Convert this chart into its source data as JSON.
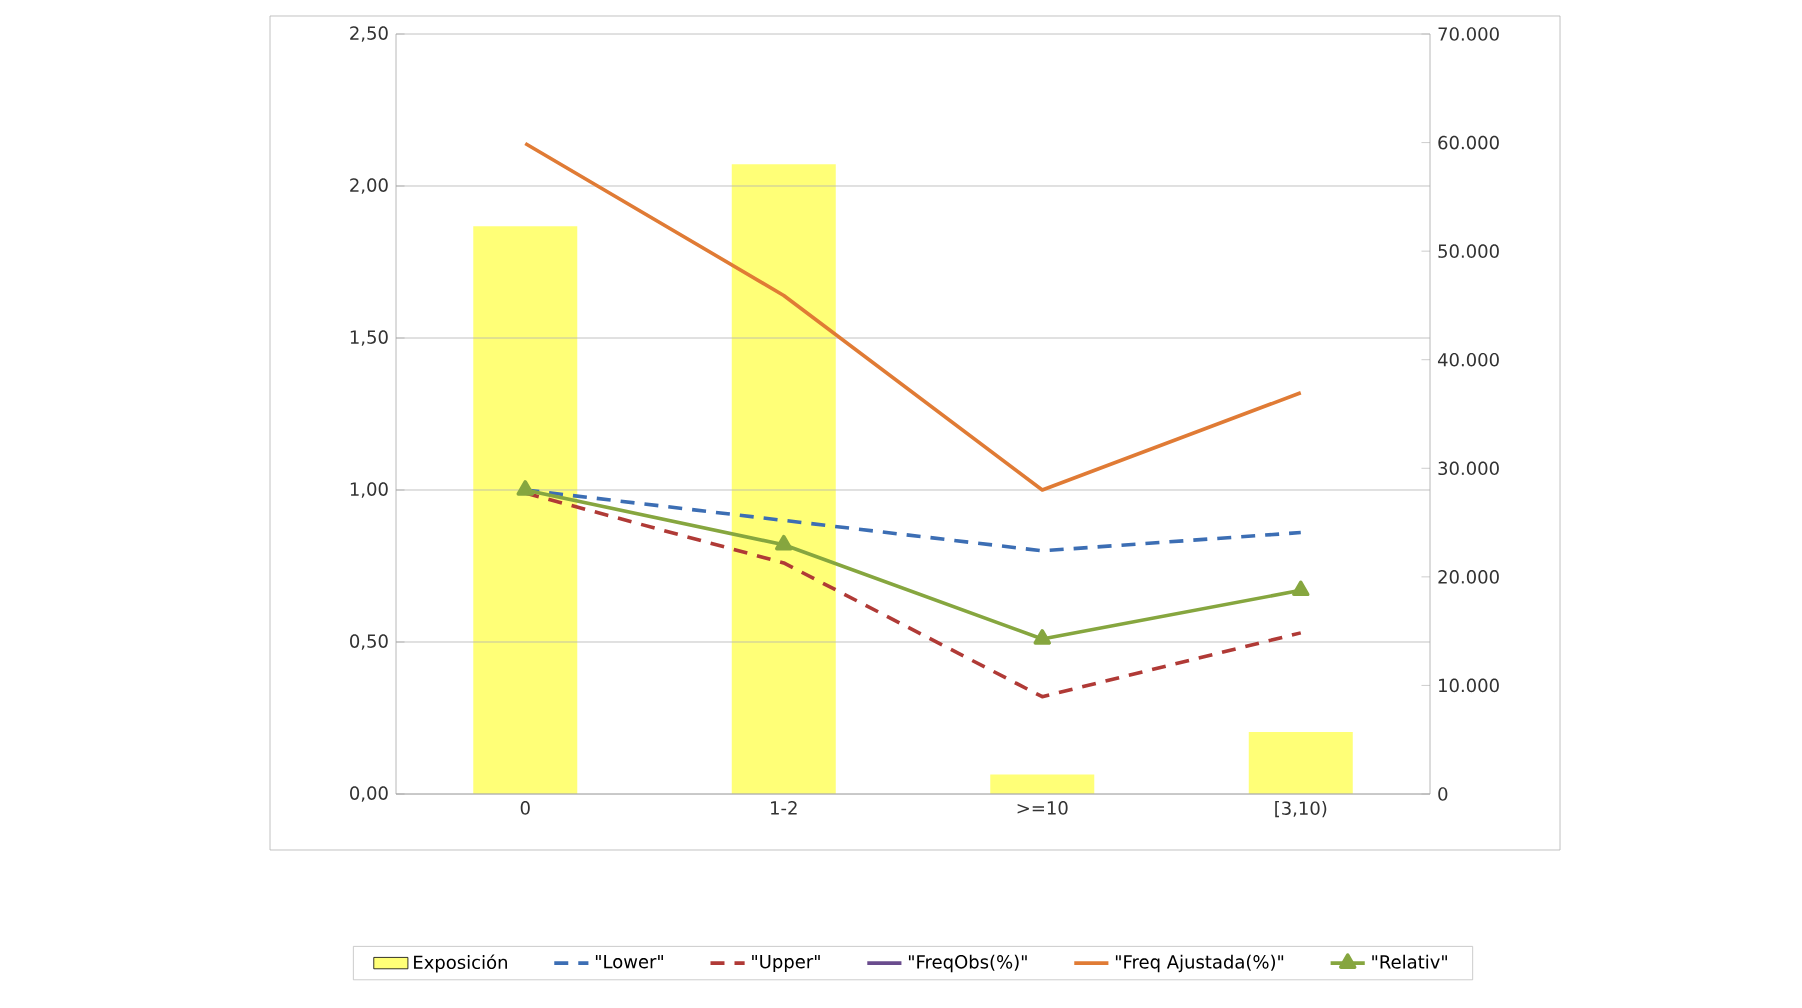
{
  "chart_data": {
    "type": "line",
    "categories": [
      "0",
      "1-2",
      ">=10",
      "[3,10)"
    ],
    "series": [
      {
        "name": "Exposición",
        "type": "bar",
        "axis": "y2",
        "color": "#ffff77",
        "values": [
          52300,
          58000,
          1800,
          5700
        ]
      },
      {
        "name": "\"Lower\"",
        "color": "#3c6eb4",
        "line_style": "dashed",
        "marker": "none",
        "values": [
          1.0,
          0.9,
          0.8,
          0.86
        ]
      },
      {
        "name": "\"Upper\"",
        "color": "#b03a36",
        "line_style": "dashed",
        "marker": "none",
        "values": [
          0.99,
          0.76,
          0.32,
          0.53
        ]
      },
      {
        "name": "\"FreqObs(%)\"",
        "color": "#6a4c8e",
        "line_style": "solid",
        "marker": "none",
        "values": [
          null,
          null,
          null,
          null
        ]
      },
      {
        "name": "\"Freq Ajustada(%)\"",
        "color": "#e07b35",
        "line_style": "solid",
        "marker": "none",
        "values": [
          2.14,
          1.64,
          1.0,
          1.32
        ]
      },
      {
        "name": "\"Relativ\"",
        "color": "#86a63f",
        "line_style": "solid",
        "marker": "triangle",
        "values": [
          1.0,
          0.82,
          0.51,
          0.67
        ]
      }
    ],
    "ylim": [
      0,
      2.5
    ],
    "yticks": [
      {
        "value": 0,
        "label": "0,00"
      },
      {
        "value": 0.5,
        "label": "0,50"
      },
      {
        "value": 1.0,
        "label": "1,00"
      },
      {
        "value": 1.5,
        "label": "1,50"
      },
      {
        "value": 2.0,
        "label": "2,00"
      },
      {
        "value": 2.5,
        "label": "2,50"
      }
    ],
    "y2lim": [
      0,
      70000
    ],
    "y2ticks": [
      0,
      {
        "value": 10000,
        "label": "10.000"
      },
      {
        "value": 20000,
        "label": "20.000"
      },
      {
        "value": 30000,
        "label": "30.000"
      },
      {
        "value": 40000,
        "label": "40.000"
      },
      {
        "value": 50000,
        "label": "50.000"
      },
      {
        "value": 60000,
        "label": "60.000"
      },
      {
        "value": 70000,
        "label": "70.000"
      }
    ],
    "grid": "y",
    "legend": "bottom"
  }
}
